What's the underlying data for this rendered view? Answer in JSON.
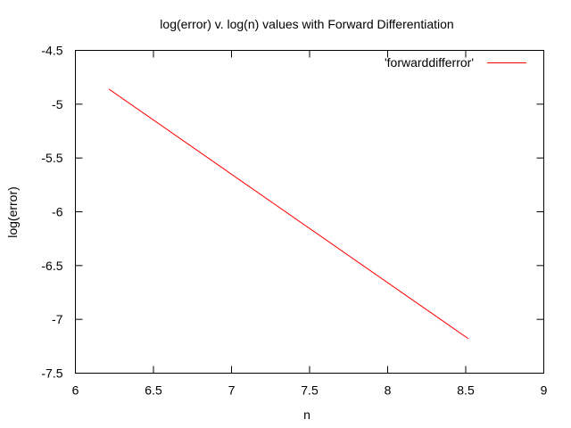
{
  "chart_data": {
    "type": "line",
    "title": "log(error) v. log(n) values with Forward Differentiation",
    "xlabel": "n",
    "ylabel": "log(error)",
    "xlim": [
      6,
      9
    ],
    "ylim": [
      -7.5,
      -4.5
    ],
    "xticks": [
      "6",
      "6.5",
      "7",
      "7.5",
      "8",
      "8.5",
      "9"
    ],
    "yticks": [
      "-4.5",
      "-5",
      "-5.5",
      "-6",
      "-6.5",
      "-7",
      "-7.5"
    ],
    "grid": false,
    "legend_position": "top-right",
    "series": [
      {
        "name": "'forwarddifferror'",
        "color": "#ff0000",
        "x": [
          6.215,
          8.517
        ],
        "y": [
          -4.86,
          -7.18
        ]
      }
    ]
  }
}
